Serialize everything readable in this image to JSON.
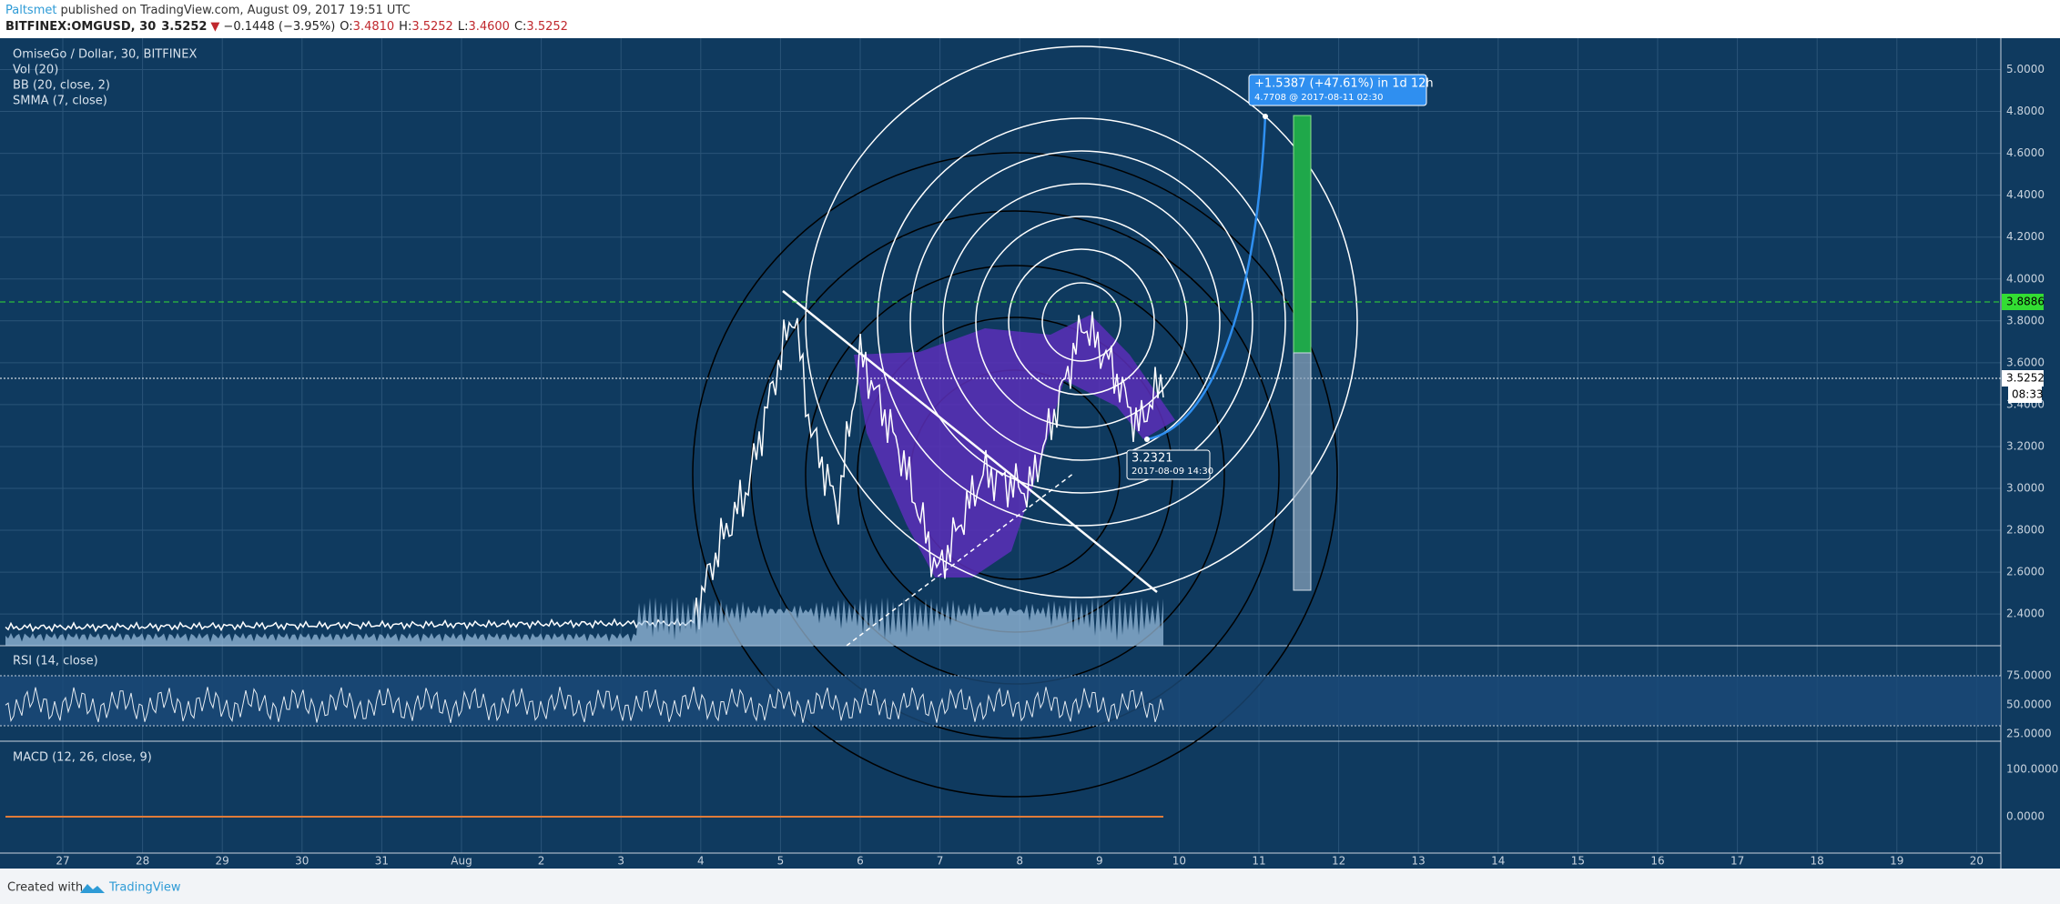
{
  "header": {
    "publisher": "Paltsmet",
    "published": "published on TradingView.com, August 09, 2017 19:51 UTC",
    "symbol": "BITFINEX:OMGUSD, 30",
    "last": "3.5252",
    "change": "−0.1448 (−3.95%)",
    "ohlc": [
      {
        "key": "O:",
        "value": "3.4810"
      },
      {
        "key": "H:",
        "value": "3.5252"
      },
      {
        "key": "L:",
        "value": "3.4600"
      },
      {
        "key": "C:",
        "value": "3.5252"
      }
    ]
  },
  "main_pane": {
    "legend": [
      "OmiseGo / Dollar, 30, BITFINEX",
      "Vol (20)",
      "BB (20, close, 2)",
      "SMMA (7, close)"
    ],
    "price_axis": [
      "5.0000",
      "4.8000",
      "4.6000",
      "4.4000",
      "4.2000",
      "4.0000",
      "3.8000",
      "3.6000",
      "3.4000",
      "3.2000",
      "3.0000",
      "2.8000",
      "2.6000",
      "2.4000"
    ],
    "badges": {
      "line": "3.8886",
      "current": "3.5252",
      "countdown": "08:33"
    },
    "projection": {
      "headline": "+1.5387 (+47.61%) in 1d 12h",
      "detail": "4.7708 @ 2017-08-11 02:30"
    },
    "low_label": {
      "price": "3.2321",
      "time": "2017-08-09 14:30"
    }
  },
  "rsi_pane": {
    "legend": "RSI (14, close)",
    "axis": [
      "75.0000",
      "50.0000",
      "25.0000"
    ]
  },
  "macd_pane": {
    "legend": "MACD (12, 26, close, 9)",
    "axis": [
      "100.0000",
      "0.0000"
    ]
  },
  "time_axis": [
    "27",
    "28",
    "29",
    "30",
    "31",
    "Aug",
    "2",
    "3",
    "4",
    "5",
    "6",
    "7",
    "8",
    "9",
    "10",
    "11",
    "12",
    "13",
    "14",
    "15",
    "16",
    "17",
    "18",
    "19",
    "20"
  ],
  "footer": {
    "created": "Created with",
    "brand": "TradingView"
  }
}
